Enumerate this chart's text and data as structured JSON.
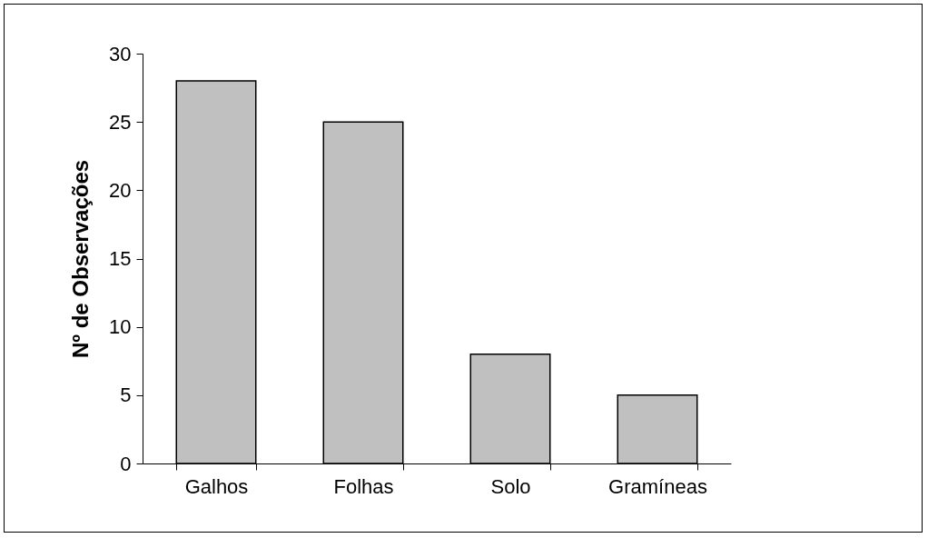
{
  "chart_data": {
    "type": "bar",
    "ylabel": "Nº de Observações",
    "categories": [
      "Galhos",
      "Folhas",
      "Solo",
      "Gramíneas"
    ],
    "values": [
      28,
      25,
      8,
      5
    ],
    "color": "#c0c0c0",
    "ylim": [
      0,
      30
    ],
    "yticks": [
      0,
      5,
      10,
      15,
      20,
      25,
      30
    ]
  }
}
